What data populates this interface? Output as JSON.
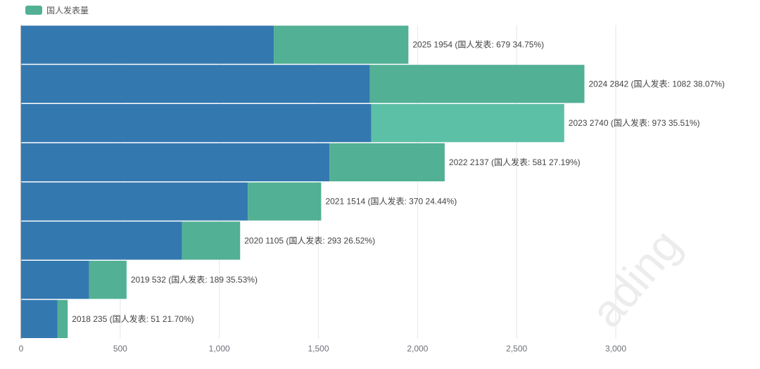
{
  "legend": {
    "label": "国人发表量",
    "color": "#52b094"
  },
  "watermark": "ading",
  "chart_data": {
    "type": "bar",
    "orientation": "horizontal",
    "stacked": true,
    "categories": [
      "2025",
      "2024",
      "2023",
      "2022",
      "2021",
      "2020",
      "2019",
      "2018"
    ],
    "totals": [
      1954,
      2842,
      2740,
      2137,
      1514,
      1105,
      532,
      235
    ],
    "series": [
      {
        "values": [
          1275,
          1760,
          1767,
          1556,
          1144,
          812,
          343,
          184
        ],
        "color": "#3478b0"
      },
      {
        "name": "国人发表量",
        "values": [
          679,
          1082,
          973,
          581,
          370,
          293,
          189,
          51
        ],
        "color": "#52b094"
      }
    ],
    "highlighted_category": "2023",
    "highlight_color": "#5cc0a6",
    "data_labels": [
      "2025 1954 (国人发表: 679 34.75%)",
      "2024 2842 (国人发表: 1082 38.07%)",
      "2023 2740 (国人发表: 973 35.51%)",
      "2022 2137 (国人发表: 581 27.19%)",
      "2021 1514 (国人发表: 370 24.44%)",
      "2020 1105 (国人发表: 293 26.52%)",
      "2019 532 (国人发表: 189 35.53%)",
      "2018 235 (国人发表: 51 21.70%)"
    ],
    "xlim": [
      0,
      3000
    ],
    "xticks": [
      0,
      500,
      1000,
      1500,
      2000,
      2500,
      3000
    ],
    "xtick_labels": [
      "0",
      "500",
      "1,000",
      "1,500",
      "2,000",
      "2,500",
      "3,000"
    ],
    "grid": "vertical",
    "legend_position": "top-left"
  }
}
